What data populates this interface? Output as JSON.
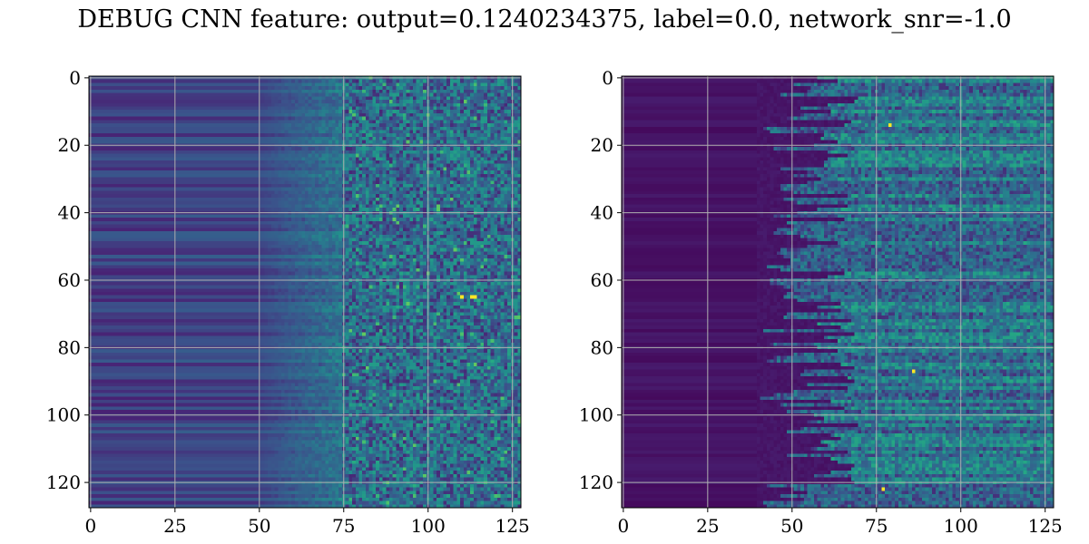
{
  "title": "DEBUG CNN feature: output=0.1240234375, label=0.0, network_snr=-1.0",
  "chart_data": [
    {
      "type": "heatmap",
      "colormap": "viridis",
      "shape": [
        128,
        128
      ],
      "xlim": [
        0,
        127
      ],
      "ylim": [
        127,
        0
      ],
      "xticks": [
        "0",
        "25",
        "50",
        "75",
        "100",
        "125"
      ],
      "yticks": [
        "0",
        "20",
        "40",
        "60",
        "80",
        "100",
        "120"
      ],
      "grid": true,
      "pattern": {
        "low_value_columns_end": 50,
        "mid_transition_columns": [
          50,
          75
        ],
        "noisy_high_columns_start": 75,
        "bright_points": [
          [
            110,
            65
          ],
          [
            113,
            65
          ],
          [
            114,
            65
          ]
        ]
      }
    },
    {
      "type": "heatmap",
      "colormap": "viridis",
      "shape": [
        128,
        128
      ],
      "xlim": [
        0,
        127
      ],
      "ylim": [
        127,
        0
      ],
      "xticks": [
        "0",
        "25",
        "50",
        "75",
        "100",
        "125"
      ],
      "yticks": [
        "0",
        "20",
        "40",
        "60",
        "80",
        "100",
        "120"
      ],
      "grid": true,
      "pattern": {
        "low_value_columns_end": 25,
        "mid_transition_columns": [
          40,
          65
        ],
        "noisy_high_columns_start": 65,
        "bright_points": [
          [
            79,
            14
          ],
          [
            86,
            87
          ],
          [
            77,
            122
          ]
        ]
      }
    }
  ]
}
